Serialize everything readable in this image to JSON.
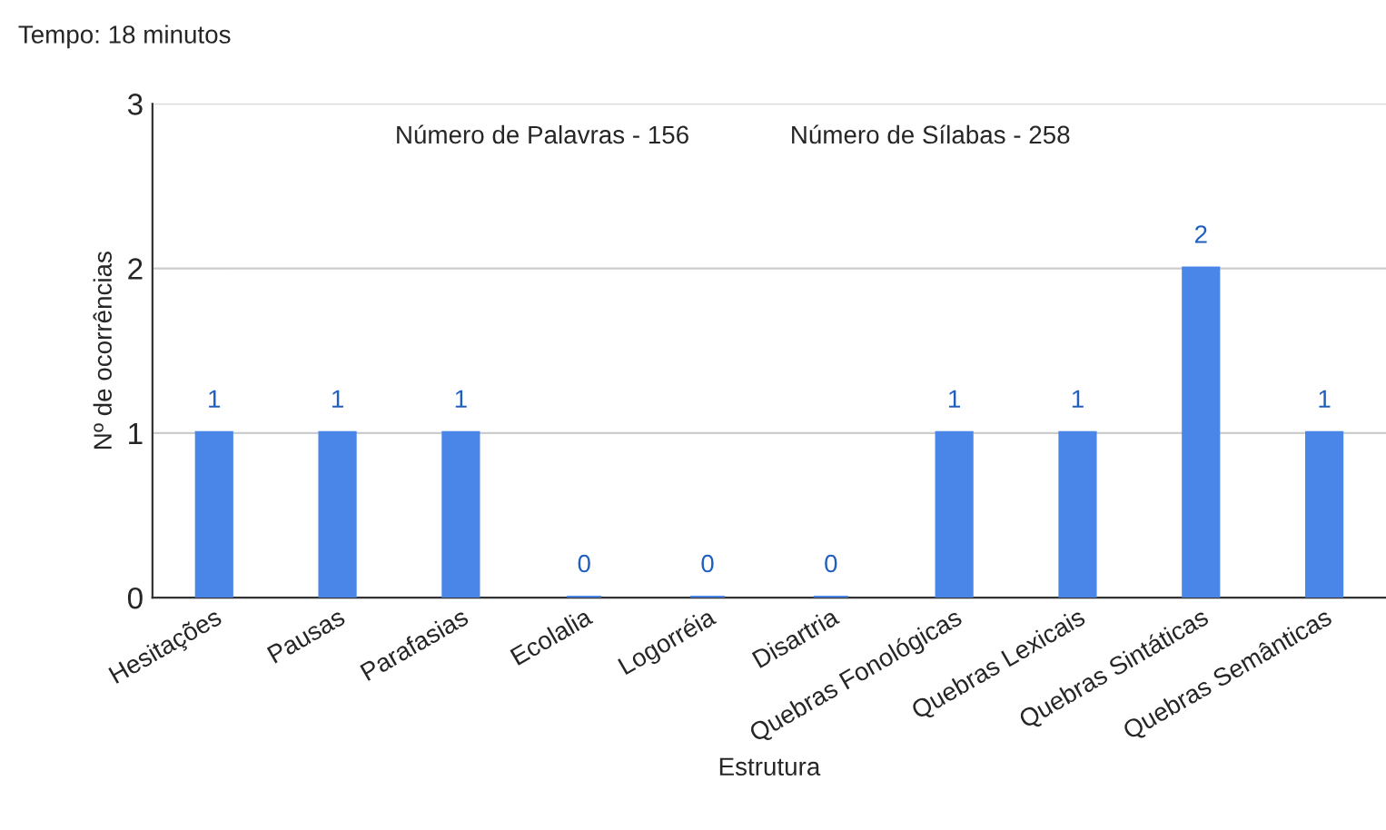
{
  "chart_data": {
    "type": "bar",
    "title": "Tempo: 18 minutos",
    "xlabel": "Estrutura",
    "ylabel": "Nº de ocorrências",
    "categories": [
      "Hesitações",
      "Pausas",
      "Parafasias",
      "Ecolalia",
      "Logorréia",
      "Disartria",
      "Quebras Fonológicas",
      "Quebras Lexicais",
      "Quebras Sintáticas",
      "Quebras Semânticas"
    ],
    "values": [
      1,
      1,
      1,
      0,
      0,
      0,
      1,
      1,
      2,
      1
    ],
    "color": "#4a86e8",
    "ylim": [
      0,
      3
    ],
    "yticks": [
      0,
      1,
      2,
      3
    ],
    "grid": "y",
    "data_labels": true,
    "annotations": [
      "Número de Palavras - 156",
      "Número de Sílabas - 258"
    ]
  }
}
